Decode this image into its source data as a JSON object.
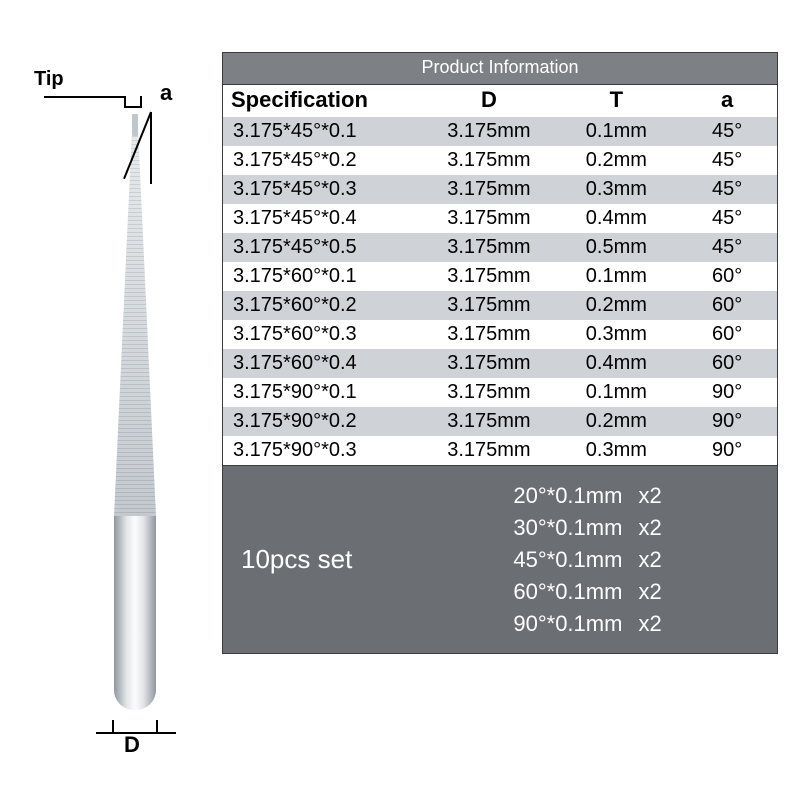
{
  "labels": {
    "tip": "Tip",
    "angle": "a",
    "diameter": "D"
  },
  "table": {
    "title": "Product Information",
    "columns": [
      "Specification",
      "D",
      "T",
      "a"
    ],
    "rows": [
      {
        "spec": "3.175*45°*0.1",
        "d": "3.175mm",
        "t": "0.1mm",
        "a": "45°",
        "shade": "light"
      },
      {
        "spec": "3.175*45°*0.2",
        "d": "3.175mm",
        "t": "0.2mm",
        "a": "45°",
        "shade": "white"
      },
      {
        "spec": "3.175*45°*0.3",
        "d": "3.175mm",
        "t": "0.3mm",
        "a": "45°",
        "shade": "light"
      },
      {
        "spec": "3.175*45°*0.4",
        "d": "3.175mm",
        "t": "0.4mm",
        "a": "45°",
        "shade": "white"
      },
      {
        "spec": "3.175*45°*0.5",
        "d": "3.175mm",
        "t": "0.5mm",
        "a": "45°",
        "shade": "light"
      },
      {
        "spec": "3.175*60°*0.1",
        "d": "3.175mm",
        "t": "0.1mm",
        "a": "60°",
        "shade": "white"
      },
      {
        "spec": "3.175*60°*0.2",
        "d": "3.175mm",
        "t": "0.2mm",
        "a": "60°",
        "shade": "light"
      },
      {
        "spec": "3.175*60°*0.3",
        "d": "3.175mm",
        "t": "0.3mm",
        "a": "60°",
        "shade": "white"
      },
      {
        "spec": "3.175*60°*0.4",
        "d": "3.175mm",
        "t": "0.4mm",
        "a": "60°",
        "shade": "light"
      },
      {
        "spec": "3.175*90°*0.1",
        "d": "3.175mm",
        "t": "0.1mm",
        "a": "90°",
        "shade": "white"
      },
      {
        "spec": "3.175*90°*0.2",
        "d": "3.175mm",
        "t": "0.2mm",
        "a": "90°",
        "shade": "light"
      },
      {
        "spec": "3.175*90°*0.3",
        "d": "3.175mm",
        "t": "0.3mm",
        "a": "90°",
        "shade": "white"
      }
    ]
  },
  "set": {
    "title": "10pcs set",
    "items": [
      {
        "spec": "20°*0.1mm",
        "qty": "x2"
      },
      {
        "spec": "30°*0.1mm",
        "qty": "x2"
      },
      {
        "spec": "45°*0.1mm",
        "qty": "x2"
      },
      {
        "spec": "60°*0.1mm",
        "qty": "x2"
      },
      {
        "spec": "90°*0.1mm",
        "qty": "x2"
      }
    ]
  },
  "colors": {
    "title_bg": "#7d8084",
    "shade_light": "#cfd2d6",
    "shade_white": "#ffffff",
    "set_bg": "#6b6e73",
    "border": "#3b3c3e"
  }
}
